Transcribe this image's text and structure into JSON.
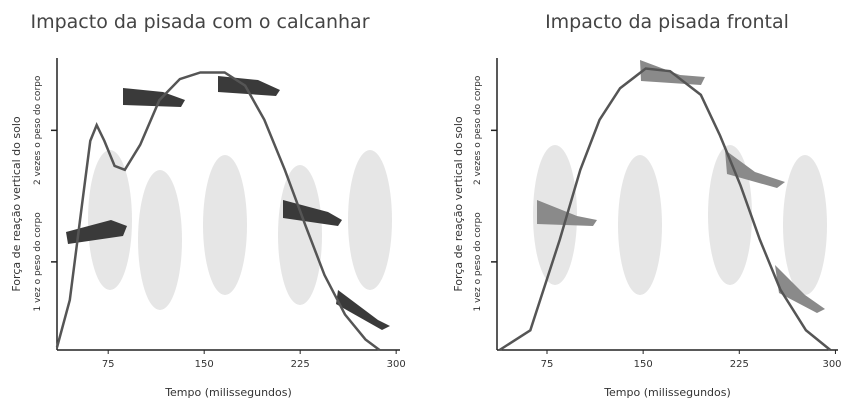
{
  "chart_data": [
    {
      "type": "line",
      "title": "Impacto da pisada com o calcanhar",
      "x_label": "Tempo (milissegundos)",
      "y_label": "Força de reação vertical do solo",
      "x": [
        35,
        45,
        55,
        61,
        66,
        72,
        80,
        88,
        100,
        115,
        131,
        147,
        166,
        182,
        197,
        213,
        229,
        244,
        260,
        276,
        287
      ],
      "values": [
        0.35,
        0.71,
        1.47,
        1.92,
        2.04,
        1.92,
        1.73,
        1.7,
        1.89,
        2.23,
        2.39,
        2.44,
        2.44,
        2.34,
        2.08,
        1.7,
        1.28,
        0.9,
        0.6,
        0.41,
        0.33
      ],
      "color": "#555555",
      "xlim": [
        35,
        303
      ],
      "xticks": [
        75,
        150,
        225,
        300
      ],
      "ylim": [
        0.33,
        2.55
      ],
      "yticks": [
        {
          "value": 1,
          "label": "1 vez o peso do corpo"
        },
        {
          "value": 2,
          "label": "2 vezes o peso do corpo"
        }
      ]
    },
    {
      "type": "line",
      "title": "Impacto da pisada frontal",
      "x_label": "Tempo (milissegundos)",
      "y_label": "Força de reação vertical do solo",
      "x": [
        38,
        62,
        85,
        101,
        116,
        132,
        152,
        171,
        195,
        210,
        226,
        241,
        257,
        277,
        296
      ],
      "values": [
        0.33,
        0.48,
        1.17,
        1.7,
        2.08,
        2.32,
        2.47,
        2.45,
        2.27,
        1.96,
        1.58,
        1.17,
        0.79,
        0.48,
        0.33
      ],
      "color": "#555555",
      "xlim": [
        36,
        302
      ],
      "xticks": [
        75,
        150,
        225,
        300
      ],
      "ylim": [
        0.33,
        2.55
      ],
      "yticks": [
        {
          "value": 1,
          "label": "1 vez o peso do corpo"
        },
        {
          "value": 2,
          "label": "2 vezes o peso do corpo"
        }
      ]
    }
  ]
}
